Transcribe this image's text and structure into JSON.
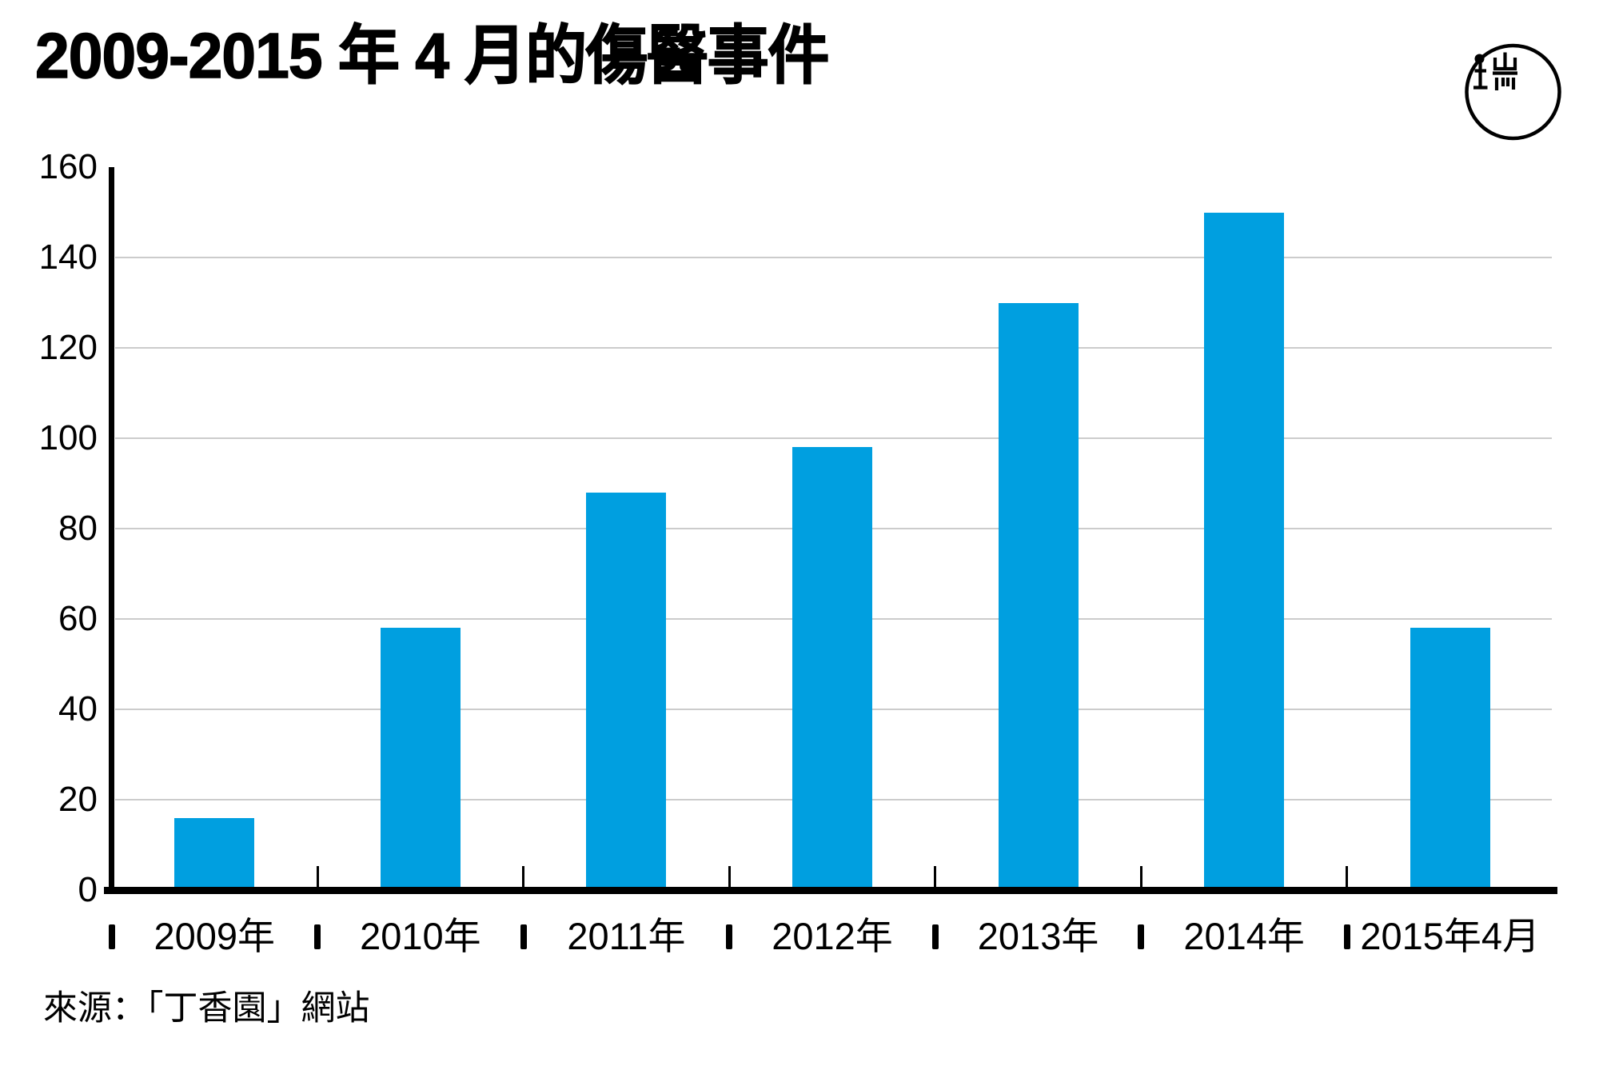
{
  "title": "2009-2015 年 4 月的傷醫事件",
  "logo": {
    "name": "initium-media-logo"
  },
  "source": "來源：「丁香園」網站",
  "chart_data": {
    "type": "bar",
    "title": "2009-2015 年 4 月的傷醫事件",
    "categories": [
      "2009年",
      "2010年",
      "2011年",
      "2012年",
      "2013年",
      "2014年",
      "2015年4月"
    ],
    "values": [
      16,
      58,
      88,
      98,
      130,
      150,
      58
    ],
    "xlabel": "",
    "ylabel": "",
    "ylim": [
      0,
      160
    ],
    "yticks": [
      0,
      20,
      40,
      60,
      80,
      100,
      120,
      140,
      160
    ],
    "bar_color": "#009FE0",
    "gridline_color": "#CCCCCC",
    "axis_color": "#000000",
    "background_color": "#FFFFFF",
    "grid": true,
    "legend": false,
    "source": "來源：「丁香園」網站"
  }
}
